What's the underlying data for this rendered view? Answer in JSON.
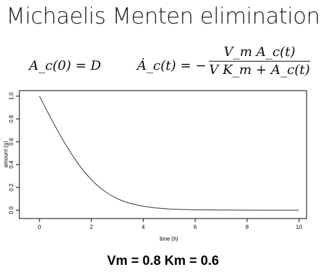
{
  "title": "Michaelis Menten elimination",
  "equation_initial": "A_c(0) = D",
  "equation_rate_lhs": "Ȧ_c(t) = −",
  "equation_rate_numerator": "V_m A_c(t)",
  "equation_rate_denominator": "V K_m + A_c(t)",
  "subtitle": "Vm = 0.8 Km = 0.6",
  "chart_data": {
    "type": "line",
    "xlabel": "time (h)",
    "ylabel": "amount (g)",
    "xlim": [
      0,
      10
    ],
    "ylim": [
      0,
      1
    ],
    "xticks": [
      0,
      2,
      4,
      6,
      8,
      10
    ],
    "yticks": [
      0.0,
      0.2,
      0.4,
      0.6,
      0.8,
      1.0
    ],
    "ytick_labels": [
      "0.0",
      "0.2",
      "0.4",
      "0.6",
      "0.8",
      "1.0"
    ],
    "grid": false,
    "series": [
      {
        "x": [
          0,
          0.25,
          0.5,
          0.75,
          1,
          1.25,
          1.5,
          1.75,
          2,
          2.25,
          2.5,
          2.75,
          3,
          3.25,
          3.5,
          3.75,
          4,
          4.5,
          5,
          5.5,
          6,
          7,
          8,
          9,
          10
        ],
        "y": [
          1.0,
          0.889,
          0.781,
          0.677,
          0.579,
          0.488,
          0.405,
          0.331,
          0.267,
          0.213,
          0.168,
          0.131,
          0.101,
          0.078,
          0.06,
          0.046,
          0.035,
          0.02,
          0.011,
          0.0065,
          0.0037,
          0.0012,
          0.0004,
          0.0001,
          0.0
        ]
      }
    ]
  }
}
